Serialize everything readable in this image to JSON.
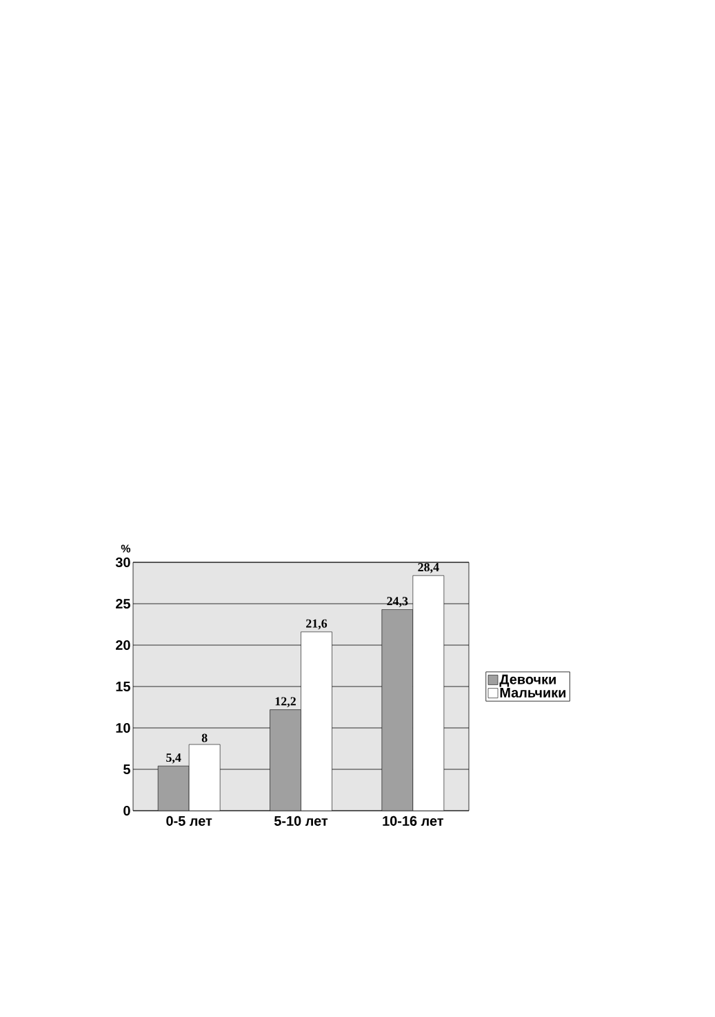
{
  "chart_data": {
    "type": "bar",
    "ylabel": "%",
    "categories": [
      "0-5 лет",
      "5-10 лет",
      "10-16 лет"
    ],
    "series": [
      {
        "name": "Девочки",
        "color": "#a0a0a0",
        "values": [
          5.4,
          12.2,
          24.3
        ],
        "value_labels": [
          "5,4",
          "12,2",
          "24,3"
        ]
      },
      {
        "name": "Мальчики",
        "color": "#ffffff",
        "values": [
          8,
          21.6,
          28.4
        ],
        "value_labels": [
          "8",
          "21,6",
          "28,4"
        ]
      }
    ],
    "ylim": [
      0,
      30
    ],
    "yticks": [
      0,
      5,
      10,
      15,
      20,
      25,
      30
    ],
    "grid": "y",
    "legend": "right"
  }
}
